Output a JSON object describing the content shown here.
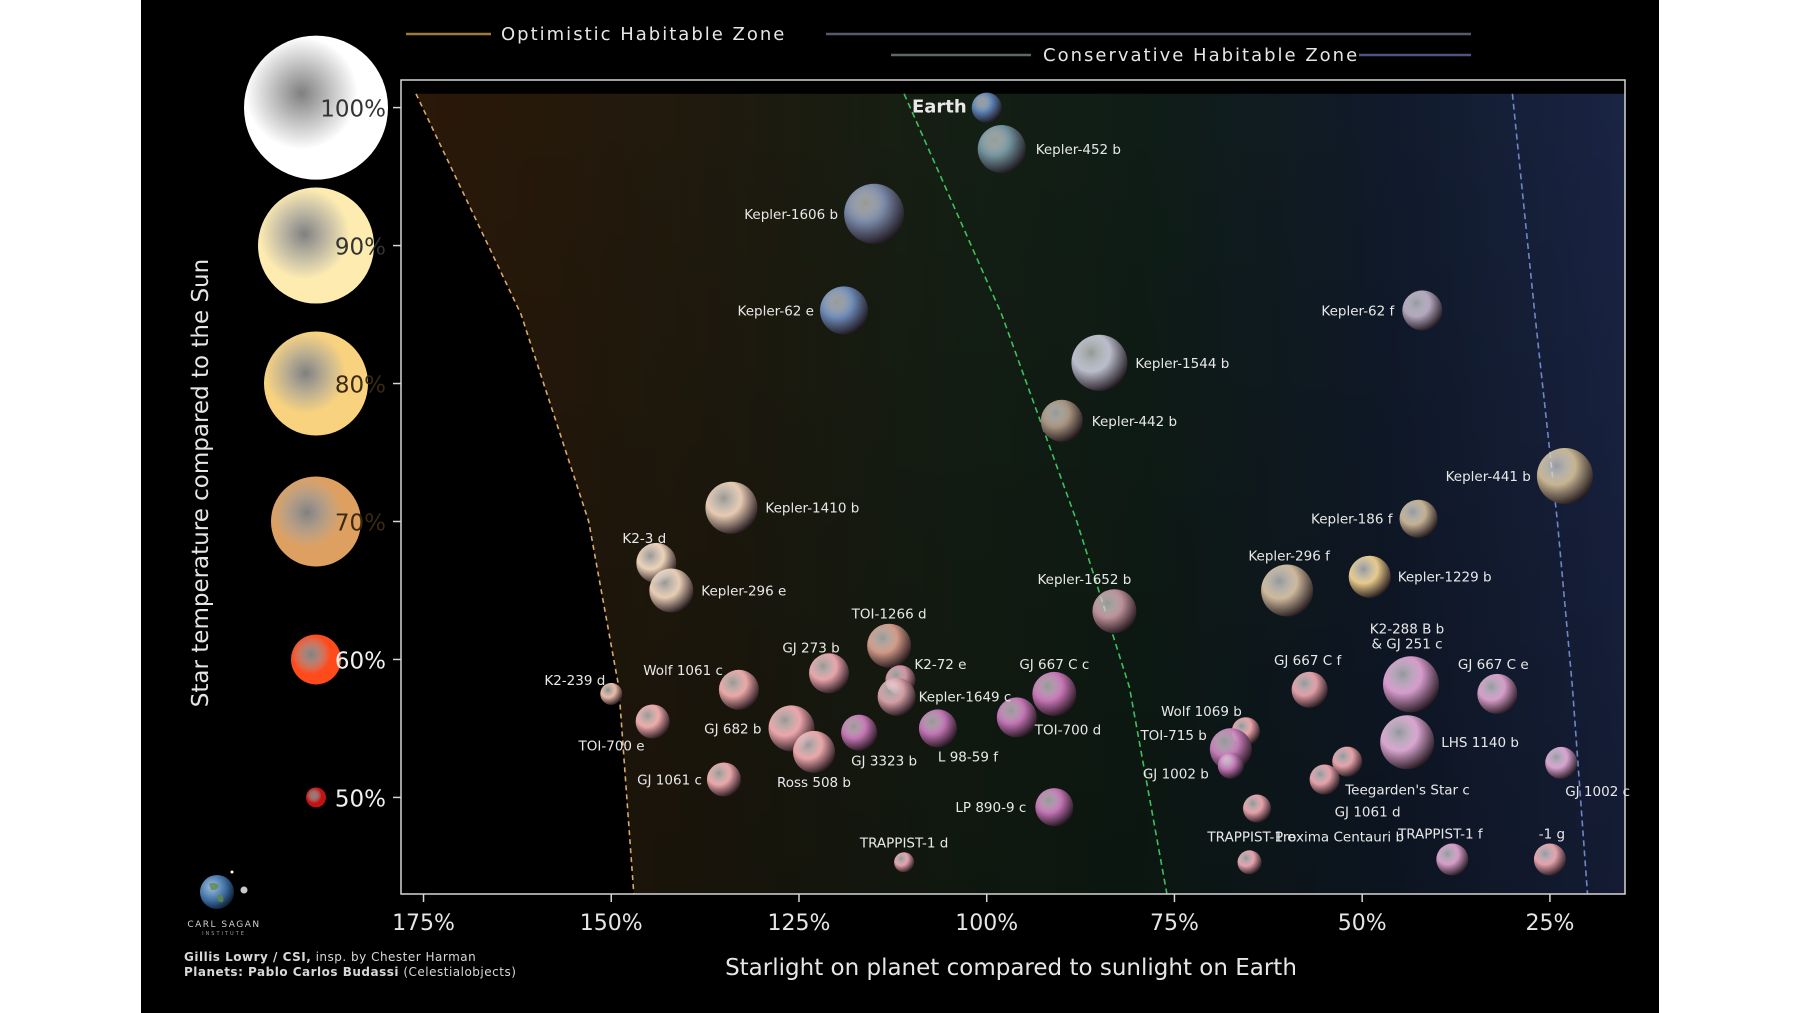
{
  "chart_data": {
    "type": "scatter",
    "title": "",
    "xlabel": "Starlight on planet compared to sunlight on Earth",
    "ylabel": "Star temperature compared to the Sun",
    "xlim": [
      178,
      15
    ],
    "ylim": [
      43,
      102
    ],
    "x_ticks": [
      {
        "value": 175,
        "label": "175%"
      },
      {
        "value": 150,
        "label": "150%"
      },
      {
        "value": 125,
        "label": "125%"
      },
      {
        "value": 100,
        "label": "100%"
      },
      {
        "value": 75,
        "label": "75%"
      },
      {
        "value": 50,
        "label": "50%"
      },
      {
        "value": 25,
        "label": "25%"
      }
    ],
    "y_ticks": [
      {
        "value": 100,
        "label": "100%",
        "color": "#ffffff"
      },
      {
        "value": 90,
        "label": "90%",
        "color": "#fdebb0"
      },
      {
        "value": 80,
        "label": "80%",
        "color": "#f8d27e"
      },
      {
        "value": 70,
        "label": "70%",
        "color": "#dea061"
      },
      {
        "value": 60,
        "label": "60%",
        "color": "#ff4a1c"
      },
      {
        "value": 50,
        "label": "50%",
        "color": "#c01313"
      }
    ],
    "zones": {
      "optimistic_label": "Optimistic Habitable Zone",
      "conservative_label": "Conservative Habitable Zone",
      "optimistic_inner": [
        [
          176,
          101
        ],
        [
          162,
          85
        ],
        [
          153,
          70
        ],
        [
          149,
          58
        ],
        [
          147,
          43
        ]
      ],
      "conservative_inner": [
        [
          111,
          101
        ],
        [
          98,
          85
        ],
        [
          88,
          70
        ],
        [
          81,
          58
        ],
        [
          76,
          43
        ]
      ],
      "conservative_outer": [
        [
          30,
          101
        ],
        [
          27,
          85
        ],
        [
          24,
          70
        ],
        [
          22,
          58
        ],
        [
          20,
          43
        ]
      ]
    },
    "planets": [
      {
        "name": "Earth",
        "x": 100,
        "y": 100,
        "color": "#5a7fb0",
        "highlight": true
      },
      {
        "name": "Kepler-452 b",
        "x": 98,
        "y": 97,
        "color": "#6f8f9a"
      },
      {
        "name": "Kepler-1606 b",
        "x": 115,
        "y": 92.3,
        "color": "#7685a4"
      },
      {
        "name": "Kepler-62 e",
        "x": 119,
        "y": 85.3,
        "color": "#6c89b5"
      },
      {
        "name": "Kepler-62 f",
        "x": 42,
        "y": 85.3,
        "color": "#b2a6bd"
      },
      {
        "name": "Kepler-1544 b",
        "x": 85,
        "y": 81.5,
        "color": "#b9bccb"
      },
      {
        "name": "Kepler-442 b",
        "x": 90,
        "y": 77.3,
        "color": "#a4907d"
      },
      {
        "name": "Kepler-441 b",
        "x": 23,
        "y": 73.3,
        "color": "#c6b492"
      },
      {
        "name": "Kepler-1410 b",
        "x": 134,
        "y": 71,
        "color": "#e6cab2"
      },
      {
        "name": "Kepler-186 f",
        "x": 42.5,
        "y": 70.2,
        "color": "#c2b091"
      },
      {
        "name": "K2-3 d",
        "x": 144,
        "y": 67,
        "color": "#ecd2b8"
      },
      {
        "name": "Kepler-296 e",
        "x": 142,
        "y": 65,
        "color": "#e8cdb4"
      },
      {
        "name": "Kepler-296 f",
        "x": 60,
        "y": 65,
        "color": "#cdb89c"
      },
      {
        "name": "Kepler-1229 b",
        "x": 49,
        "y": 66,
        "color": "#e7ca8c"
      },
      {
        "name": "Kepler-1652 b",
        "x": 83,
        "y": 63.5,
        "color": "#b98d96"
      },
      {
        "name": "TOI-1266 d",
        "x": 113,
        "y": 61,
        "color": "#d09986"
      },
      {
        "name": "K2-72 e",
        "x": 111.5,
        "y": 58.5,
        "color": "#d092a0"
      },
      {
        "name": "Kepler-1649 c",
        "x": 112,
        "y": 57.3,
        "color": "#d29da3"
      },
      {
        "name": "K2-239 d",
        "x": 150,
        "y": 57.5,
        "color": "#eabaa7"
      },
      {
        "name": "Wolf 1061 c",
        "x": 133,
        "y": 57.8,
        "color": "#eaa7a6"
      },
      {
        "name": "GJ 273 b",
        "x": 121,
        "y": 59,
        "color": "#e8a4aa"
      },
      {
        "name": "GJ 667 C c",
        "x": 91,
        "y": 57.5,
        "color": "#c775b5"
      },
      {
        "name": "TOI-700 e",
        "x": 144.5,
        "y": 55.5,
        "color": "#eeaaaa"
      },
      {
        "name": "GJ 682 b",
        "x": 126,
        "y": 55,
        "color": "#eba5aa"
      },
      {
        "name": "GJ 3323 b",
        "x": 117,
        "y": 54.7,
        "color": "#c476b2"
      },
      {
        "name": "Ross 508 b",
        "x": 123,
        "y": 53.3,
        "color": "#eaa6aa"
      },
      {
        "name": "L 98-59 f",
        "x": 106.5,
        "y": 55,
        "color": "#bf72b1"
      },
      {
        "name": "TOI-700 d",
        "x": 96,
        "y": 55.8,
        "color": "#c274b4"
      },
      {
        "name": "GJ 1061 c",
        "x": 135,
        "y": 51.3,
        "color": "#eaa6aa"
      },
      {
        "name": "LP 890-9 c",
        "x": 91,
        "y": 49.3,
        "color": "#c274b4"
      },
      {
        "name": "TRAPPIST-1 d",
        "x": 111,
        "y": 45.3,
        "color": "#e4a2ac"
      },
      {
        "name": "GJ 667 C f",
        "x": 57,
        "y": 57.8,
        "color": "#e19da5"
      },
      {
        "name": "Wolf 1069 b",
        "x": 65.5,
        "y": 54.8,
        "color": "#e8a2a8"
      },
      {
        "name": "TOI-715 b",
        "x": 67.5,
        "y": 53.5,
        "color": "#c27bb4"
      },
      {
        "name": "GJ 1002 b",
        "x": 67.5,
        "y": 52.3,
        "color": "#bc72b1"
      },
      {
        "name": "K2-288 B b\n& GJ 251 c",
        "x": 43.5,
        "y": 58.2,
        "color": "#d59bcc"
      },
      {
        "name": "GJ 667 C e",
        "x": 32,
        "y": 57.5,
        "color": "#d59cc8"
      },
      {
        "name": "LHS 1140 b",
        "x": 44,
        "y": 54,
        "color": "#d8a5cf"
      },
      {
        "name": "GJ 1002 c",
        "x": 23.5,
        "y": 52.5,
        "color": "#d7a2d0"
      },
      {
        "name": "Teegarden's Star c",
        "x": 52,
        "y": 52.6,
        "color": "#e5a0a8"
      },
      {
        "name": "GJ 1061 d",
        "x": 55,
        "y": 51.3,
        "color": "#e5a0a8"
      },
      {
        "name": "Proxima Centauri b",
        "x": 64,
        "y": 49.2,
        "color": "#e5a0a8"
      },
      {
        "name": "TRAPPIST-1 e",
        "x": 65,
        "y": 45.3,
        "color": "#e4a2ac"
      },
      {
        "name": "TRAPPIST-1 f",
        "x": 38,
        "y": 45.5,
        "color": "#d59cc8"
      },
      {
        "name": "-1 g",
        "x": 25,
        "y": 45.5,
        "color": "#e4a2ac"
      }
    ]
  },
  "credits": {
    "line1_bold": "Gillis Lowry / CSI,",
    "line1_rest": " insp. by Chester Harman",
    "line2_bold": "Planets: Pablo Carlos Budassi",
    "line2_rest": " (Celestialobjects)"
  },
  "logo": {
    "text": "CARL SAGAN",
    "sub": "INSTITUTE"
  }
}
